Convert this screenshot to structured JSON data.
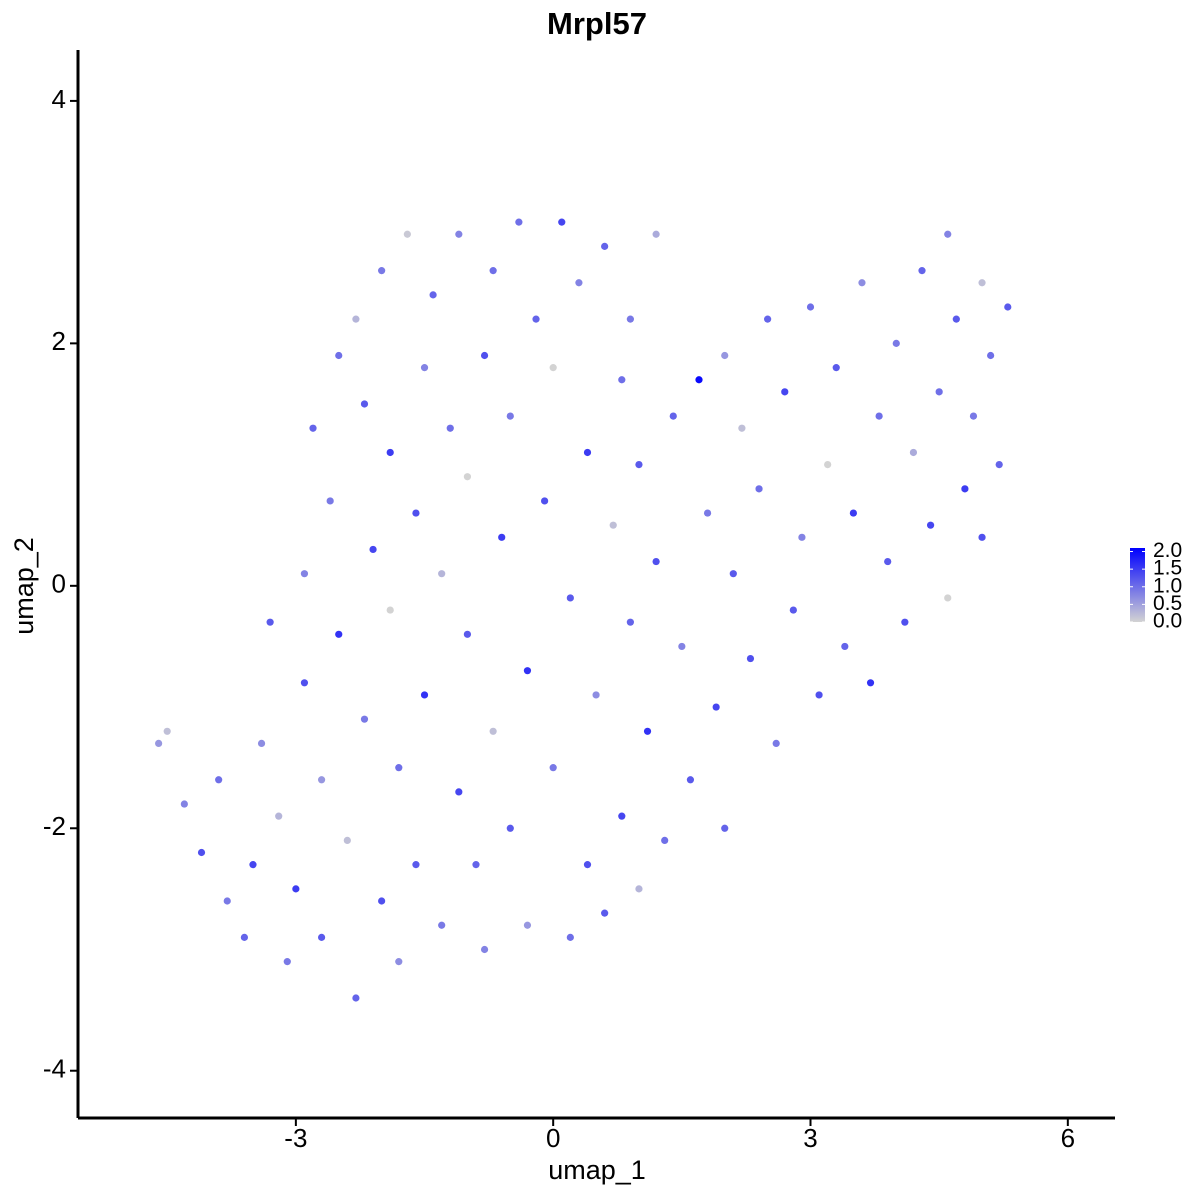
{
  "chart_data": {
    "type": "scatter",
    "title": "Mrpl57",
    "xlabel": "umap_1",
    "ylabel": "umap_2",
    "xlim": [
      -5.54,
      6.55
    ],
    "ylim": [
      -4.39,
      4.42
    ],
    "xticks": [
      -3,
      0,
      3,
      6
    ],
    "yticks": [
      -4,
      -2,
      0,
      2,
      4
    ],
    "colors": [
      "#d3d3d3",
      "#0000ff"
    ],
    "colorlim": [
      0,
      2.1
    ],
    "colorticks": [
      {
        "value": 0,
        "label": "0.0"
      },
      {
        "value": 0.5,
        "label": "0.5"
      },
      {
        "value": 1,
        "label": "1.0"
      },
      {
        "value": 1.5,
        "label": "1.5"
      },
      {
        "value": 2,
        "label": "2.0"
      }
    ],
    "x": [
      -4.6,
      -4.5,
      -4.3,
      -4.1,
      -3.9,
      -3.8,
      -3.6,
      -3.5,
      -3.4,
      -3.3,
      -3.2,
      -3.1,
      -3.0,
      -2.9,
      -2.9,
      -2.8,
      -2.7,
      -2.7,
      -2.6,
      -2.5,
      -2.5,
      -2.4,
      -2.3,
      -2.3,
      -2.2,
      -2.2,
      -2.1,
      -2.0,
      -2.0,
      -1.9,
      -1.9,
      -1.8,
      -1.8,
      -1.7,
      -1.6,
      -1.6,
      -1.5,
      -1.5,
      -1.4,
      -1.3,
      -1.3,
      -1.2,
      -1.1,
      -1.1,
      -1.0,
      -1.0,
      -0.9,
      -0.8,
      -0.8,
      -0.7,
      -0.7,
      -0.6,
      -0.5,
      -0.5,
      -0.4,
      -0.3,
      -0.3,
      -0.2,
      -0.1,
      0.0,
      0.0,
      0.1,
      0.2,
      0.2,
      0.3,
      0.4,
      0.4,
      0.5,
      0.6,
      0.6,
      0.7,
      0.8,
      0.8,
      0.9,
      0.9,
      1.0,
      1.0,
      1.1,
      1.2,
      1.2,
      1.3,
      1.4,
      1.5,
      1.6,
      1.7,
      1.8,
      1.9,
      2.0,
      2.0,
      2.1,
      2.2,
      2.3,
      2.4,
      2.5,
      2.6,
      2.7,
      2.8,
      2.9,
      3.0,
      3.1,
      3.2,
      3.3,
      3.4,
      3.5,
      3.6,
      3.7,
      3.8,
      3.9,
      4.0,
      4.1,
      4.2,
      4.3,
      4.4,
      4.5,
      4.6,
      4.6,
      4.7,
      4.8,
      4.9,
      5.0,
      5.0,
      5.1,
      5.2,
      5.3
    ],
    "y": [
      -1.3,
      -1.2,
      -1.8,
      -2.2,
      -1.6,
      -2.6,
      -2.9,
      -2.3,
      -1.3,
      -0.3,
      -1.9,
      -3.1,
      -2.5,
      0.1,
      -0.8,
      1.3,
      -1.6,
      -2.9,
      0.7,
      1.9,
      -0.4,
      -2.1,
      -3.4,
      2.2,
      1.5,
      -1.1,
      0.3,
      -2.6,
      2.6,
      -0.2,
      1.1,
      -1.5,
      -3.1,
      2.9,
      0.6,
      -2.3,
      1.8,
      -0.9,
      2.4,
      -2.8,
      0.1,
      1.3,
      -1.7,
      2.9,
      -0.4,
      0.9,
      -2.3,
      1.9,
      -3.0,
      2.6,
      -1.2,
      0.4,
      -2.0,
      1.4,
      3.0,
      -0.7,
      -2.8,
      2.2,
      0.7,
      -1.5,
      1.8,
      3.0,
      -2.9,
      -0.1,
      2.5,
      1.1,
      -2.3,
      -0.9,
      2.8,
      -2.7,
      0.5,
      1.7,
      -1.9,
      -0.3,
      2.2,
      -2.5,
      1.0,
      -1.2,
      2.9,
      0.2,
      -2.1,
      1.4,
      -0.5,
      -1.6,
      1.7,
      0.6,
      -1.0,
      1.9,
      -2.0,
      0.1,
      1.3,
      -0.6,
      0.8,
      2.2,
      -1.3,
      1.6,
      -0.2,
      0.4,
      2.3,
      -0.9,
      1.0,
      1.8,
      -0.5,
      0.6,
      2.5,
      -0.8,
      1.4,
      0.2,
      2.0,
      -0.3,
      1.1,
      2.6,
      0.5,
      1.6,
      2.9,
      -0.1,
      2.2,
      0.8,
      1.4,
      2.5,
      0.4,
      1.9,
      1.0,
      2.3
    ],
    "values": [
      0.6,
      0.2,
      0.8,
      1.3,
      1.0,
      0.9,
      1.1,
      1.4,
      0.7,
      1.2,
      0.3,
      0.9,
      1.5,
      0.8,
      1.3,
      1.1,
      0.6,
      1.2,
      0.9,
      1.0,
      1.6,
      0.2,
      1.1,
      0.3,
      1.2,
      0.9,
      1.4,
      1.3,
      0.9,
      0.0,
      1.5,
      1.0,
      0.7,
      0.1,
      1.3,
      1.2,
      0.8,
      1.6,
      1.1,
      0.9,
      0.3,
      1.0,
      1.4,
      0.8,
      1.2,
      0.0,
      1.1,
      1.3,
      0.8,
      1.0,
      0.2,
      1.5,
      1.2,
      0.9,
      1.0,
      1.6,
      0.6,
      1.1,
      1.3,
      0.9,
      0.0,
      1.4,
      1.0,
      1.2,
      0.8,
      1.5,
      1.3,
      0.7,
      1.1,
      1.2,
      0.2,
      1.0,
      1.4,
      1.1,
      0.9,
      0.3,
      1.2,
      1.6,
      0.4,
      1.3,
      1.0,
      1.1,
      0.8,
      1.2,
      2.0,
      0.9,
      1.4,
      0.6,
      1.1,
      1.2,
      0.2,
      1.3,
      1.0,
      1.1,
      0.9,
      1.4,
      1.2,
      0.8,
      1.0,
      1.3,
      0.0,
      1.2,
      1.1,
      1.5,
      0.7,
      1.6,
      1.0,
      1.2,
      0.9,
      1.3,
      0.4,
      1.1,
      1.4,
      1.0,
      0.8,
      0.0,
      1.2,
      1.5,
      0.9,
      0.2,
      1.3,
      1.0,
      1.1,
      1.2
    ]
  }
}
